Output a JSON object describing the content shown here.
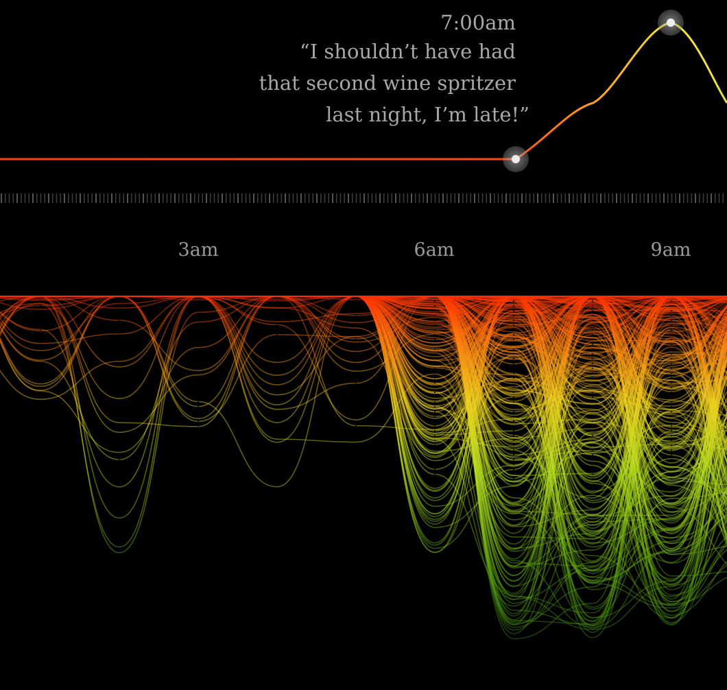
{
  "annotation": {
    "time": "7:00am",
    "quote_lines": [
      "“I shouldn’t have had",
      "that second wine spritzer",
      "last night, I’m late!”"
    ]
  },
  "axis_labels": [
    "3am",
    "6am",
    "9am"
  ]
}
